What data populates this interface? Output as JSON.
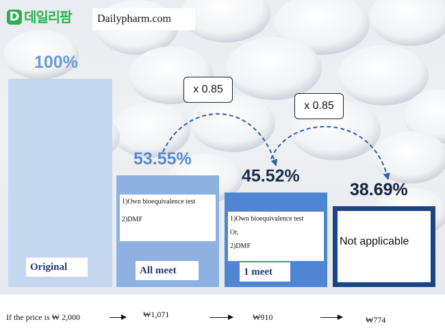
{
  "site": {
    "logo_mark": "D",
    "logo_text": "데일리팜",
    "url_text": "Dailypharm.com"
  },
  "chart_data": {
    "type": "bar",
    "categories": [
      "Original",
      "All meet",
      "1 meet",
      "Not applicable"
    ],
    "values": [
      100,
      53.55,
      45.52,
      38.69
    ],
    "value_labels": [
      "100%",
      "53.55%",
      "45.52%",
      "38.69%"
    ],
    "ylim": [
      0,
      100
    ],
    "bar_colors": [
      "#c5d6ef",
      "#8eb1e2",
      "#4f86d4",
      "#1c4587"
    ],
    "label_colors": [
      "#6a9bd8",
      "#5a8bd0",
      "#1a2d4f",
      "#12223f"
    ],
    "conditions": [
      [],
      [
        "1)Own bioequivalence test",
        "2)DMF"
      ],
      [
        "1)Own bioequivalence test",
        "Or,",
        "2)DMF"
      ],
      [
        "Not applicable"
      ]
    ],
    "multipliers": [
      "x 0.85",
      "x 0.85"
    ]
  },
  "prices": {
    "intro": "If the price is ₩ 2,000",
    "values": [
      "₩1,071",
      "₩910",
      "₩774"
    ]
  }
}
